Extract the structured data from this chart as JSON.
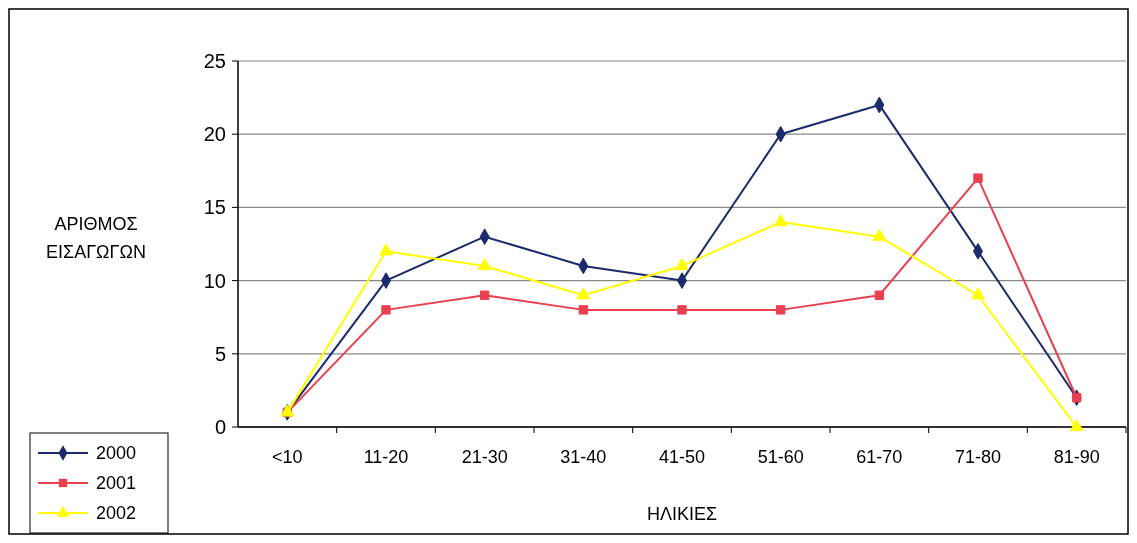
{
  "chart_data": {
    "type": "line",
    "xlabel": "ΗΛΙΚΙΕΣ",
    "ylabel": "ΑΡΙΘΜΟΣ ΕΙΣΑΓΩΓΩΝ",
    "categories": [
      "<10",
      "11-20",
      "21-30",
      "31-40",
      "41-50",
      "51-60",
      "61-70",
      "71-80",
      "81-90"
    ],
    "series": [
      {
        "name": "2000",
        "color": "#1a2a6c",
        "marker": "diamond",
        "values": [
          1,
          10,
          13,
          11,
          10,
          20,
          22,
          12,
          2
        ]
      },
      {
        "name": "2001",
        "color": "#e8404f",
        "marker": "square",
        "values": [
          1,
          8,
          9,
          8,
          8,
          8,
          9,
          17,
          2
        ]
      },
      {
        "name": "2002",
        "color": "#ffff00",
        "marker": "triangle",
        "values": [
          1,
          12,
          11,
          9,
          11,
          14,
          13,
          9,
          0
        ]
      }
    ],
    "ylim": [
      0,
      25
    ],
    "yticks": [
      0,
      5,
      10,
      15,
      20,
      25
    ],
    "grid": "y",
    "legend": "bottom left",
    "line_style": "solid"
  }
}
